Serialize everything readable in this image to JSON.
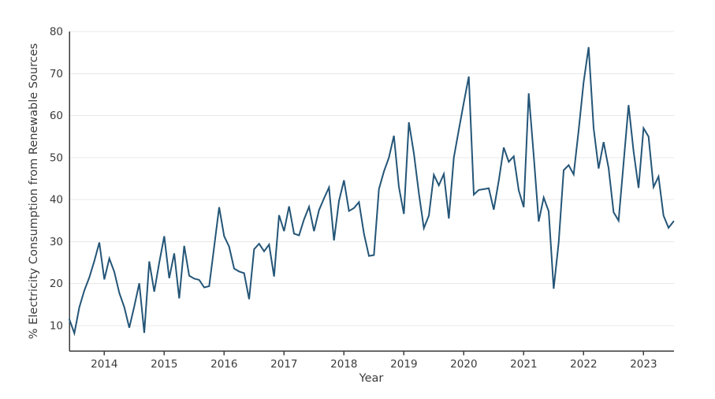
{
  "chart": {
    "title": "",
    "x_axis_title": "Year",
    "y_axis_title": "% Electricity Consumption from Renewable Sources",
    "colors": {
      "line": "#245577",
      "grid": "#e8e8e8",
      "spine": "#3b3b3b",
      "text": "#3b3b3b",
      "background": "#ffffff"
    }
  },
  "chart_data": {
    "type": "line",
    "title": "",
    "xlabel": "Year",
    "ylabel": "% Electricity Consumption from Renewable Sources",
    "frequency": "monthly",
    "start_month": "2013-06",
    "x_start": 2013.4167,
    "x_step": 0.0833333,
    "xlim": [
      2013.4167,
      2023.5083
    ],
    "ylim": [
      4,
      80
    ],
    "x_ticks": [
      2014,
      2015,
      2016,
      2017,
      2018,
      2019,
      2020,
      2021,
      2022,
      2023
    ],
    "y_ticks": [
      10,
      20,
      30,
      40,
      50,
      60,
      70,
      80
    ],
    "grid": "horizontal-only",
    "legend": "none",
    "values": [
      11.5,
      8.2,
      14.4,
      18.4,
      21.5,
      25.4,
      29.8,
      21.0,
      26.0,
      22.8,
      17.8,
      14.4,
      9.5,
      14.6,
      20.1,
      8.3,
      25.3,
      18.1,
      25.0,
      31.3,
      21.3,
      27.2,
      16.5,
      29.0,
      21.9,
      21.2,
      20.9,
      19.1,
      19.4,
      28.8,
      38.2,
      31.3,
      28.8,
      23.6,
      22.9,
      22.5,
      16.3,
      28.2,
      29.5,
      27.7,
      29.3,
      21.7,
      36.3,
      32.5,
      38.4,
      31.9,
      31.5,
      35.3,
      38.3,
      32.5,
      37.5,
      40.3,
      42.9,
      30.3,
      39.7,
      44.6,
      37.3,
      38.0,
      39.4,
      31.9,
      26.6,
      26.8,
      42.5,
      46.7,
      50.0,
      55.2,
      43.0,
      36.6,
      58.4,
      51.0,
      41.5,
      33.2,
      36.2,
      45.9,
      43.4,
      46.1,
      35.5,
      50.0,
      56.6,
      63.1,
      69.3,
      41.2,
      42.3,
      42.5,
      42.7,
      37.6,
      44.5,
      52.4,
      49.0,
      50.3,
      42.2,
      38.2,
      65.3,
      50.5,
      34.8,
      40.5,
      37.2,
      18.8,
      29.8,
      47.0,
      48.2,
      46.0,
      56.5,
      68.0,
      76.3,
      57.0,
      47.4,
      53.7,
      47.5,
      37.0,
      35.0,
      48.7,
      62.5,
      51.5,
      42.8,
      57.0,
      55.0,
      43.0,
      45.5,
      36.2,
      33.3,
      34.8
    ]
  }
}
